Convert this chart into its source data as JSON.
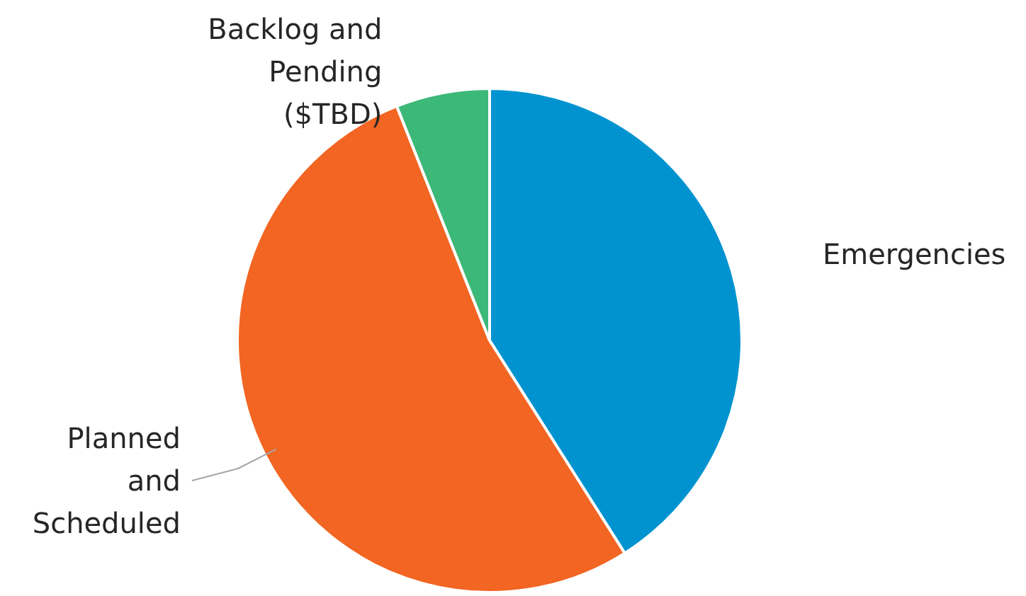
{
  "chart_data": {
    "type": "pie",
    "categories": [
      "Emergencies",
      "Planned\nand\nScheduled",
      "Backlog and\nPending\n($TBD)"
    ],
    "values": [
      41,
      53,
      6
    ],
    "colors": [
      "#0093d0",
      "#f26522",
      "#3cb878"
    ]
  }
}
